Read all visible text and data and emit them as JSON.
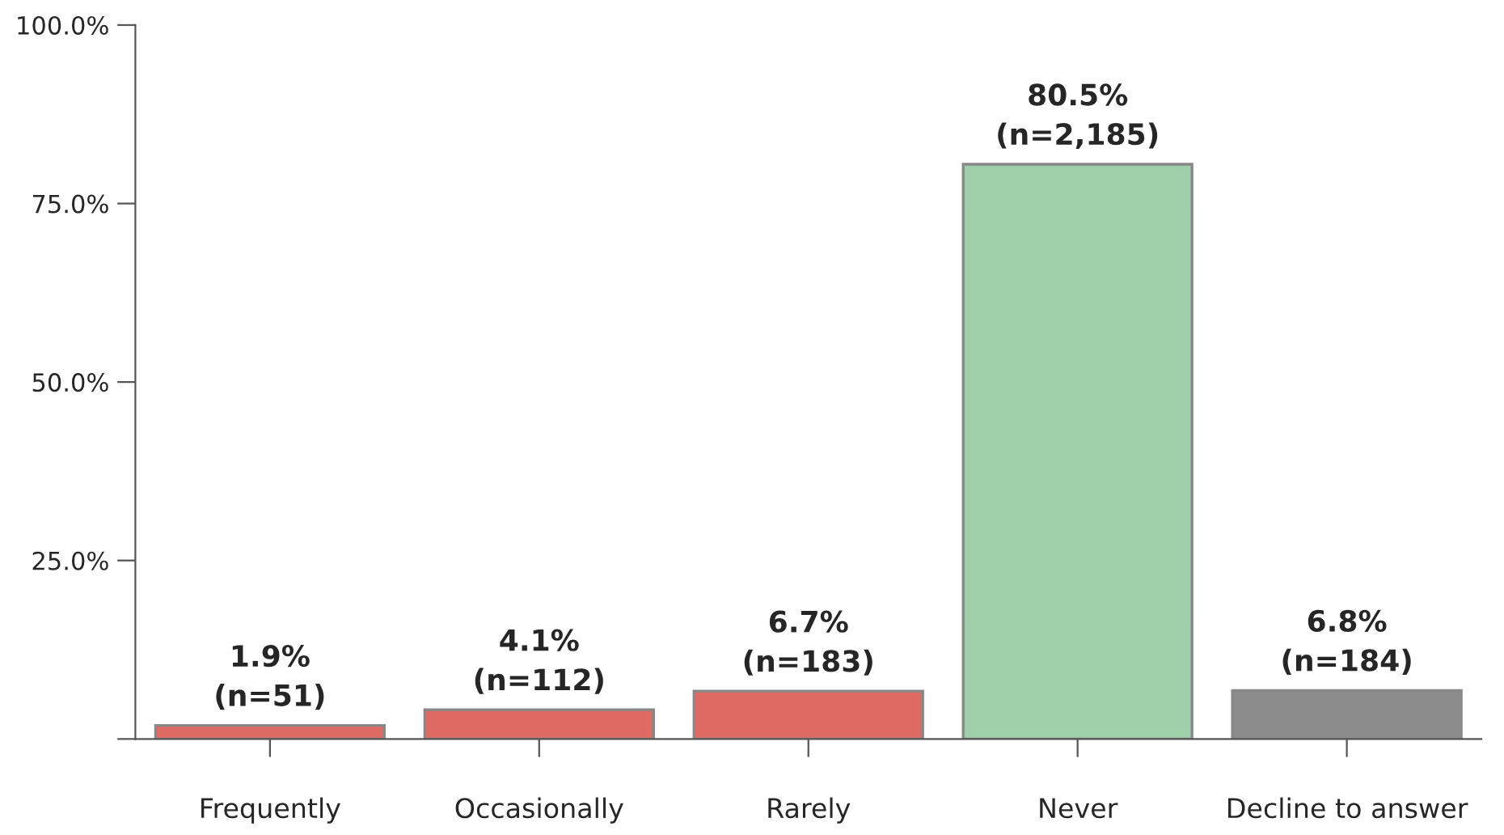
{
  "chart_data": {
    "type": "bar",
    "categories": [
      "Frequently",
      "Occasionally",
      "Rarely",
      "Never",
      "Decline to answer"
    ],
    "values": [
      1.9,
      4.1,
      6.7,
      80.5,
      6.8
    ],
    "colors": [
      "#e06b64",
      "#e06b64",
      "#e06b64",
      "#9ecfa8",
      "#8c8c8c"
    ],
    "value_labels": [
      "1.9%\n(n=51)",
      "4.1%\n(n=112)",
      "6.7%\n(n=183)",
      "80.5%\n(n=2,185)",
      "6.8%\n(n=184)"
    ],
    "ylim": [
      0,
      100
    ],
    "yticks": [
      {
        "value": 0,
        "label": null
      },
      {
        "value": 25,
        "label": "25.0%"
      },
      {
        "value": 50,
        "label": "50.0%"
      },
      {
        "value": 75,
        "label": "75.0%"
      },
      {
        "value": 100,
        "label": "100.0%"
      }
    ],
    "grid": false,
    "legend": false
  }
}
